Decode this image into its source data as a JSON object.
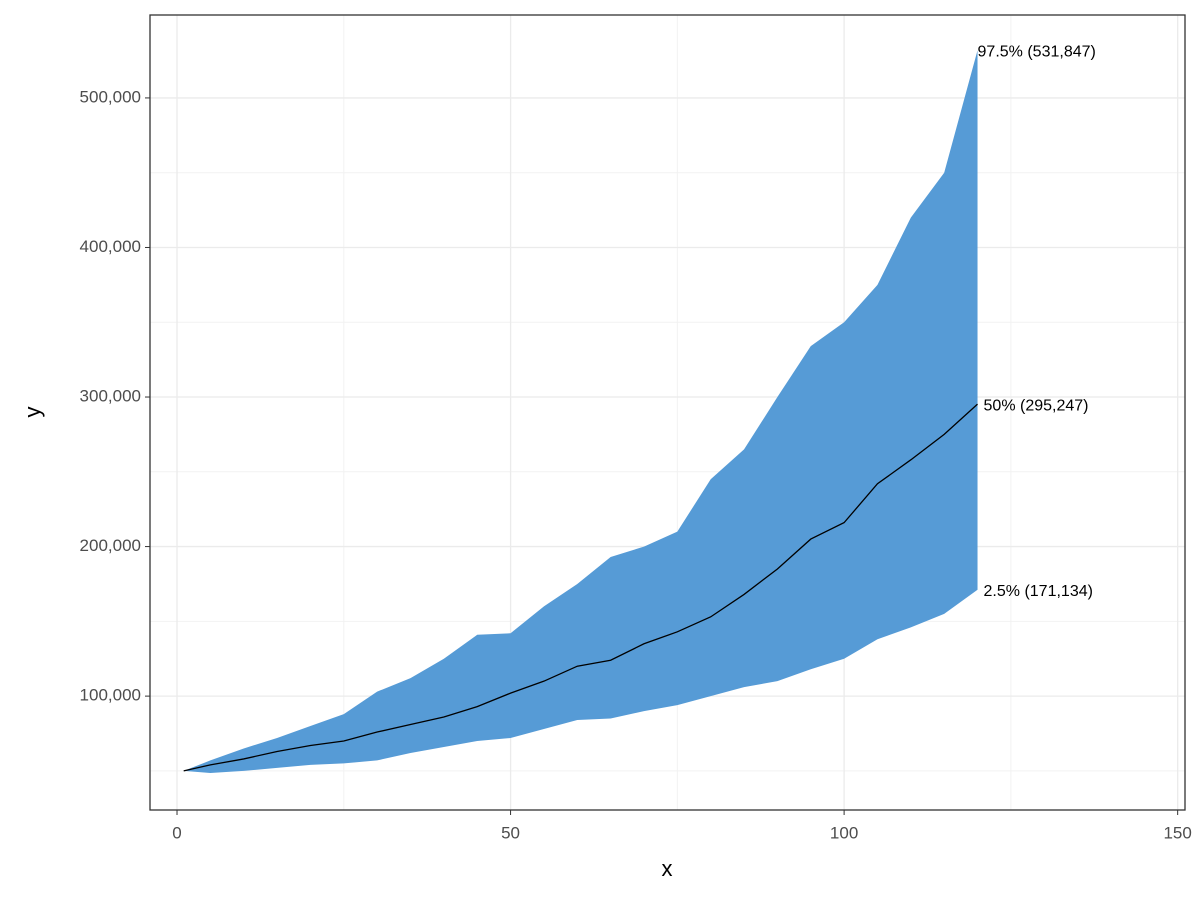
{
  "chart_data": {
    "type": "ribbon",
    "x_label": "x",
    "y_label": "y",
    "x": [
      1,
      5,
      10,
      15,
      20,
      25,
      30,
      35,
      40,
      45,
      50,
      55,
      60,
      65,
      70,
      75,
      80,
      85,
      90,
      95,
      100,
      105,
      110,
      115,
      120
    ],
    "lower": [
      50000,
      48600,
      50000,
      52000,
      54000,
      55000,
      57000,
      62000,
      66000,
      70000,
      72000,
      78000,
      84000,
      85000,
      90000,
      94000,
      100000,
      106000,
      110000,
      118000,
      125000,
      138000,
      146000,
      155000,
      171134
    ],
    "median": [
      50000,
      54000,
      58000,
      63000,
      67000,
      70000,
      76000,
      81000,
      86000,
      93000,
      102000,
      110000,
      120000,
      124000,
      135000,
      143000,
      153000,
      168000,
      185000,
      205000,
      216000,
      242000,
      258000,
      275000,
      295247
    ],
    "upper": [
      50000,
      57000,
      65000,
      72000,
      80000,
      88000,
      103000,
      112000,
      125000,
      141000,
      142000,
      160000,
      175000,
      193000,
      200000,
      210000,
      245000,
      265000,
      300000,
      334000,
      350000,
      375000,
      420000,
      450000,
      531847
    ],
    "ribbon_color": "#569bd6",
    "line_color": "#000000",
    "annotations": [
      "97.5% (531,847)",
      "50% (295,247)",
      "2.5% (171,134)"
    ],
    "xlim": [
      -4.05,
      151.1
    ],
    "ylim": [
      23850,
      555450
    ],
    "xticks": [
      0,
      50,
      100,
      150
    ],
    "yticks": [
      {
        "value": 100000,
        "label": "100,000"
      },
      {
        "value": 200000,
        "label": "200,000"
      },
      {
        "value": 300000,
        "label": "300,000"
      },
      {
        "value": 400000,
        "label": "400,000"
      },
      {
        "value": 500000,
        "label": "500,000"
      }
    ],
    "x_minor_breaks": [
      25,
      75,
      125
    ],
    "y_minor_breaks": [
      50000,
      150000,
      250000,
      350000,
      450000
    ],
    "grid": true
  }
}
